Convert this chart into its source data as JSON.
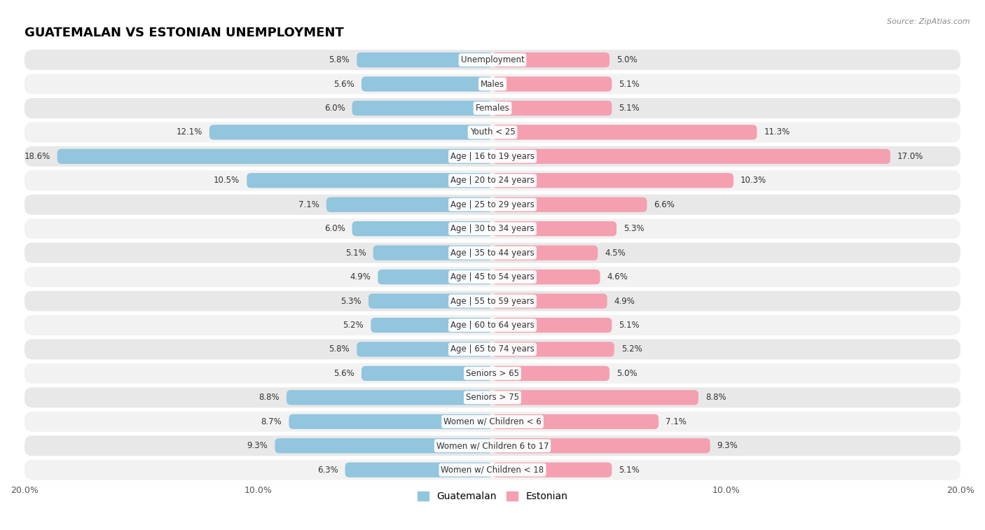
{
  "title": "GUATEMALAN VS ESTONIAN UNEMPLOYMENT",
  "source": "Source: ZipAtlas.com",
  "categories": [
    "Unemployment",
    "Males",
    "Females",
    "Youth < 25",
    "Age | 16 to 19 years",
    "Age | 20 to 24 years",
    "Age | 25 to 29 years",
    "Age | 30 to 34 years",
    "Age | 35 to 44 years",
    "Age | 45 to 54 years",
    "Age | 55 to 59 years",
    "Age | 60 to 64 years",
    "Age | 65 to 74 years",
    "Seniors > 65",
    "Seniors > 75",
    "Women w/ Children < 6",
    "Women w/ Children 6 to 17",
    "Women w/ Children < 18"
  ],
  "guatemalan": [
    5.8,
    5.6,
    6.0,
    12.1,
    18.6,
    10.5,
    7.1,
    6.0,
    5.1,
    4.9,
    5.3,
    5.2,
    5.8,
    5.6,
    8.8,
    8.7,
    9.3,
    6.3
  ],
  "estonian": [
    5.0,
    5.1,
    5.1,
    11.3,
    17.0,
    10.3,
    6.6,
    5.3,
    4.5,
    4.6,
    4.9,
    5.1,
    5.2,
    5.0,
    8.8,
    7.1,
    9.3,
    5.1
  ],
  "guatemalan_color": "#92c5de",
  "estonian_color": "#f4a0b0",
  "bar_height": 0.62,
  "row_color_even": "#e8e8e8",
  "row_color_odd": "#f2f2f2",
  "xlim": 20.0,
  "label_fontsize": 9,
  "category_fontsize": 8.5,
  "title_fontsize": 13,
  "value_fontsize": 8.5,
  "legend_fontsize": 10
}
